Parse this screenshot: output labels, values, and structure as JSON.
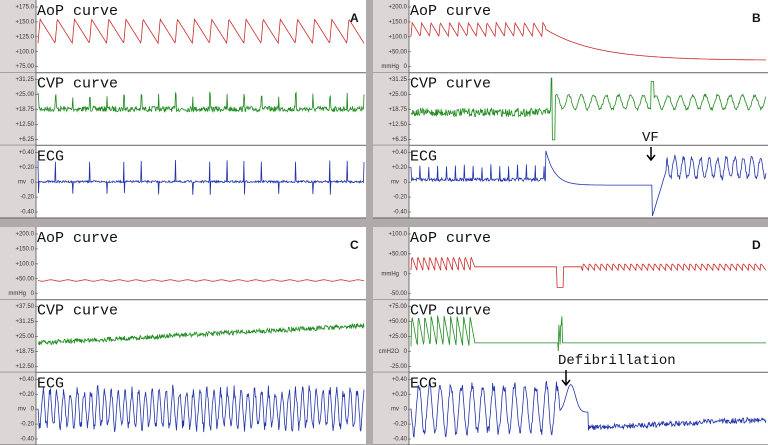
{
  "panels": [
    {
      "label": "A",
      "strips": [
        {
          "title": "AoP curve",
          "ticks": [
            "+175.0",
            "+150.0",
            "+125.0",
            "+100.0",
            "+75.00"
          ]
        },
        {
          "title": "CVP curve",
          "ticks": [
            "+31.25",
            "+25.00",
            "+18.75",
            "+12.50",
            "+6.25"
          ]
        },
        {
          "title": "ECG",
          "unit": "mv",
          "ticks": [
            "+0.40",
            "+0.20",
            "0",
            "-0.20",
            "-0.40"
          ]
        }
      ]
    },
    {
      "label": "B",
      "annotation": "VF",
      "strips": [
        {
          "title": "AoP curve",
          "unit": "mmHg",
          "ticks": [
            "+200.0",
            "+150.0",
            "+100.0",
            "+50.00",
            "0"
          ]
        },
        {
          "title": "CVP curve",
          "ticks": [
            "+31.25",
            "+25.00",
            "+18.75",
            "+12.50",
            "+6.25"
          ]
        },
        {
          "title": "ECG",
          "unit": "mv",
          "ticks": [
            "+0.40",
            "+0.20",
            "0",
            "-0.20",
            "-0.40"
          ]
        }
      ]
    },
    {
      "label": "C",
      "strips": [
        {
          "title": "AoP curve",
          "unit": "mmHg",
          "ticks": [
            "+200.0",
            "+150.0",
            "+100.0",
            "+50.00",
            "0"
          ]
        },
        {
          "title": "CVP curve",
          "ticks": [
            "+37.50",
            "+31.25",
            "+25.00",
            "+18.75",
            "+12.50"
          ]
        },
        {
          "title": "ECG",
          "unit": "mv",
          "ticks": [
            "+0.40",
            "+0.20",
            "0",
            "-0.20",
            "-0.40"
          ]
        }
      ]
    },
    {
      "label": "D",
      "annotation": "Defibrillation",
      "strips": [
        {
          "title": "AoP curve",
          "unit": "mmHg",
          "ticks": [
            "+100.0",
            "+50.00",
            "0",
            "-50.00"
          ]
        },
        {
          "title": "CVP curve",
          "unit": "cmH2O",
          "ticks": [
            "+75.00",
            "+50.00",
            "+25.00",
            "0",
            "-25.00"
          ]
        },
        {
          "title": "ECG",
          "unit": "mv",
          "ticks": [
            "+0.40",
            "+0.20",
            "0",
            "-0.20",
            "-0.40"
          ]
        }
      ]
    }
  ]
}
